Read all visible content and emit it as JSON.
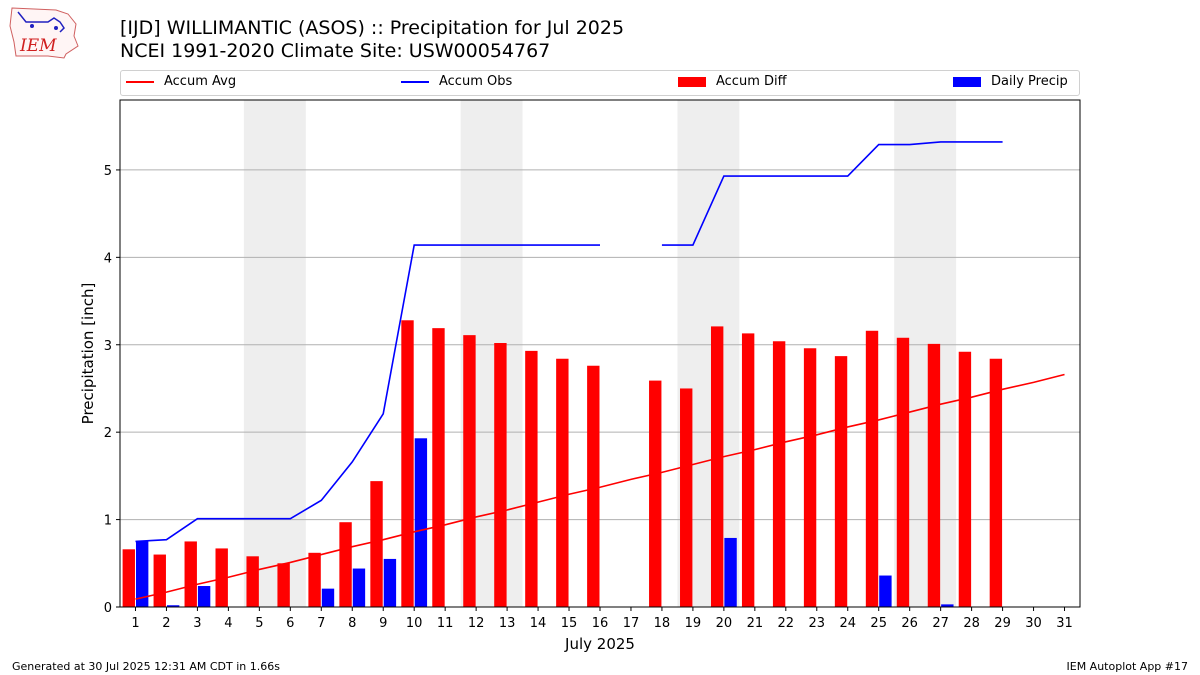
{
  "header": {
    "logo_text": "IEM",
    "title_line1": "[IJD] WILLIMANTIC (ASOS) :: Precipitation for Jul 2025",
    "title_line2": "NCEI 1991-2020 Climate Site: USW00054767"
  },
  "footer": {
    "generated": "Generated at 30 Jul 2025 12:31 AM CDT in 1.66s",
    "app": "IEM Autoplot App #17"
  },
  "colors": {
    "accum_avg": "#ff0000",
    "accum_obs": "#0000ff",
    "accum_diff": "#ff0000",
    "daily_precip": "#0000ff",
    "weekend_shade": "#eeeeee",
    "grid": "#b0b0b0"
  },
  "chart_data": {
    "type": "bar",
    "xlabel": "July 2025",
    "ylabel": "Precipitation [inch]",
    "ylim": [
      0,
      5.8
    ],
    "yticks": [
      0,
      1,
      2,
      3,
      4,
      5
    ],
    "grid": "horizontal",
    "legend_placement": "top, above plot",
    "days": [
      1,
      2,
      3,
      4,
      5,
      6,
      7,
      8,
      9,
      10,
      11,
      12,
      13,
      14,
      15,
      16,
      17,
      18,
      19,
      20,
      21,
      22,
      23,
      24,
      25,
      26,
      27,
      28,
      29,
      30,
      31
    ],
    "weekend_shaded_days": [
      [
        5,
        6
      ],
      [
        12,
        13
      ],
      [
        19,
        20
      ],
      [
        26,
        27
      ]
    ],
    "series": [
      {
        "name": "Accum Avg",
        "kind": "line",
        "values": [
          0.09,
          0.17,
          0.26,
          0.34,
          0.43,
          0.51,
          0.6,
          0.69,
          0.77,
          0.86,
          0.94,
          1.03,
          1.11,
          1.2,
          1.29,
          1.37,
          1.46,
          1.54,
          1.63,
          1.72,
          1.8,
          1.89,
          1.97,
          2.06,
          2.14,
          2.23,
          2.32,
          2.4,
          2.49,
          2.57,
          2.66
        ]
      },
      {
        "name": "Accum Obs",
        "kind": "line",
        "values": [
          0.75,
          0.77,
          1.01,
          1.01,
          1.01,
          1.01,
          1.22,
          1.66,
          2.21,
          4.14,
          4.14,
          4.14,
          4.14,
          4.14,
          4.14,
          4.14,
          null,
          4.14,
          4.14,
          4.93,
          4.93,
          4.93,
          4.93,
          4.93,
          5.29,
          5.29,
          5.32,
          5.32,
          5.32,
          null,
          null
        ]
      },
      {
        "name": "Accum Diff",
        "kind": "bar",
        "values": [
          0.66,
          0.6,
          0.75,
          0.67,
          0.58,
          0.5,
          0.62,
          0.97,
          1.44,
          3.28,
          3.19,
          3.11,
          3.02,
          2.93,
          2.84,
          2.76,
          null,
          2.59,
          2.5,
          3.21,
          3.13,
          3.04,
          2.96,
          2.87,
          3.16,
          3.08,
          3.01,
          2.92,
          2.84,
          null,
          null
        ]
      },
      {
        "name": "Daily Precip",
        "kind": "bar",
        "values": [
          0.75,
          0.02,
          0.24,
          0,
          0,
          0,
          0.21,
          0.44,
          0.55,
          1.93,
          0,
          0,
          0,
          0,
          0,
          0,
          null,
          0,
          0,
          0.79,
          0,
          0,
          0,
          0,
          0.36,
          0,
          0.03,
          0,
          0,
          null,
          null
        ]
      }
    ]
  }
}
